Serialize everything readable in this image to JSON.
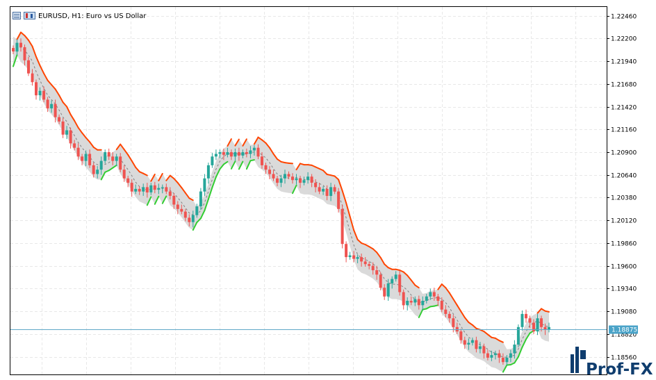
{
  "window": {
    "title": "EURUSD, H1:  Euro vs US Dollar"
  },
  "price_scale": {
    "labels": [
      "1.22460",
      "1.22200",
      "1.21940",
      "1.21680",
      "1.21420",
      "1.21160",
      "1.20900",
      "1.20640",
      "1.20380",
      "1.20120",
      "1.19860",
      "1.19600",
      "1.19340",
      "1.19080",
      "1.18820",
      "1.18560"
    ],
    "current_price": "1.18875"
  },
  "logo": {
    "text": "Prof-FX"
  },
  "colors": {
    "bull": "#26a69a",
    "bear": "#ef5350",
    "upper_band": "#ff4500",
    "lower_band": "#32cd32",
    "channel_fill": "#d3d3d3",
    "mid_line": "#808080",
    "grid": "#e8e8e8",
    "current_line": "#5fa8c8",
    "current_box": "#4aa3c8"
  },
  "chart_data": {
    "type": "candlestick",
    "symbol": "EURUSD",
    "timeframe": "H1",
    "description": "Euro vs US Dollar",
    "ylim": [
      1.1843,
      1.2252
    ],
    "current_price": 1.18875,
    "close": [
      1.2205,
      1.2215,
      1.221,
      1.2195,
      1.218,
      1.217,
      1.2155,
      1.216,
      1.215,
      1.214,
      1.2145,
      1.213,
      1.2125,
      1.211,
      1.2115,
      1.21,
      1.2095,
      1.2085,
      1.208,
      1.2088,
      1.2075,
      1.2065,
      1.207,
      1.208,
      1.209,
      1.2085,
      1.208,
      1.2085,
      1.207,
      1.206,
      1.2055,
      1.2045,
      1.2048,
      1.2045,
      1.205,
      1.2044,
      1.2052,
      1.2047,
      1.2049,
      1.205,
      1.2045,
      1.204,
      1.203,
      1.2025,
      1.2022,
      1.2015,
      1.201,
      1.2018,
      1.2028,
      1.2045,
      1.206,
      1.2075,
      1.2085,
      1.2088,
      1.209,
      1.2087,
      1.209,
      1.2085,
      1.209,
      1.2086,
      1.209,
      1.2088,
      1.2092,
      1.2095,
      1.2085,
      1.2075,
      1.207,
      1.2065,
      1.206,
      1.2055,
      1.206,
      1.2065,
      1.2062,
      1.2058,
      1.206,
      1.2055,
      1.2058,
      1.2062,
      1.2055,
      1.205,
      1.2045,
      1.2048,
      1.204,
      1.205,
      1.2045,
      1.2025,
      1.1985,
      1.197,
      1.1972,
      1.1968,
      1.197,
      1.1965,
      1.1962,
      1.196,
      1.1955,
      1.195,
      1.1935,
      1.1925,
      1.194,
      1.1945,
      1.195,
      1.193,
      1.1915,
      1.192,
      1.1918,
      1.1922,
      1.1915,
      1.192,
      1.1925,
      1.193,
      1.1925,
      1.192,
      1.191,
      1.1905,
      1.19,
      1.189,
      1.1885,
      1.1875,
      1.187,
      1.1872,
      1.1875,
      1.1865,
      1.1868,
      1.186,
      1.1855,
      1.1858,
      1.186,
      1.1855,
      1.185,
      1.1855,
      1.186,
      1.187,
      1.189,
      1.1905,
      1.19,
      1.1895,
      1.1885,
      1.19,
      1.189,
      1.1887,
      1.189
    ]
  }
}
